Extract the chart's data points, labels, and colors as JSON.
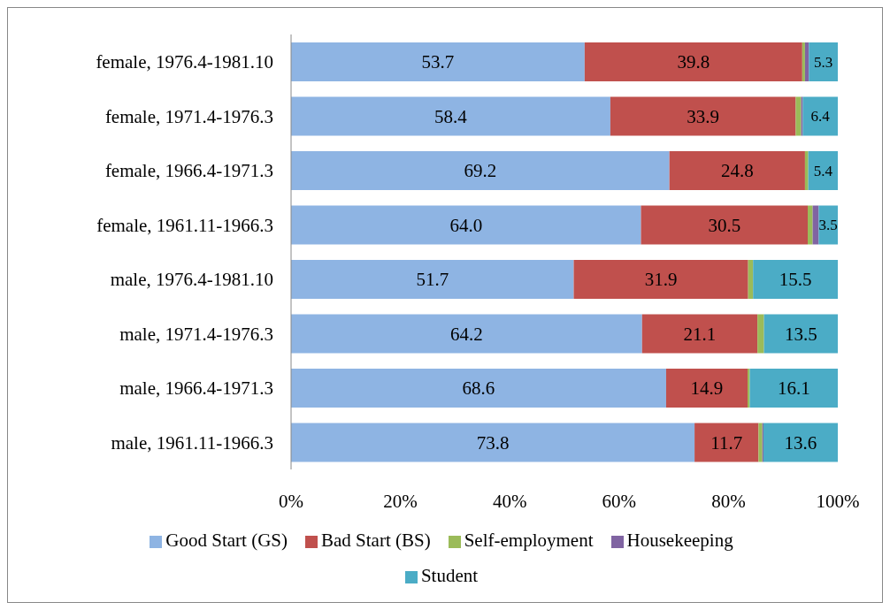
{
  "chart_data": {
    "type": "bar",
    "orientation": "horizontal",
    "stacked": true,
    "legend": "bottom",
    "categories": [
      "female, 1976.4-1981.10",
      "female, 1971.4-1976.3",
      "female, 1966.4-1971.3",
      "female, 1961.11-1966.3",
      "male, 1976.4-1981.10",
      "male, 1971.4-1976.3",
      "male, 1966.4-1971.3",
      "male, 1961.11-1966.3"
    ],
    "series": [
      {
        "name": "Good Start (GS)",
        "color": "#8eb4e3",
        "values": [
          53.7,
          58.4,
          69.2,
          64.0,
          51.7,
          64.2,
          68.6,
          73.8
        ],
        "value_labels": [
          "53.7",
          "58.4",
          "69.2",
          "64.0",
          "51.7",
          "64.2",
          "68.6",
          "73.8"
        ]
      },
      {
        "name": "Bad Start (BS)",
        "color": "#c0504d",
        "values": [
          39.8,
          33.9,
          24.8,
          30.5,
          31.9,
          21.1,
          14.9,
          11.7
        ],
        "value_labels": [
          "39.8",
          "33.9",
          "24.8",
          "30.5",
          "31.9",
          "21.1",
          "14.9",
          "11.7"
        ]
      },
      {
        "name": "Self-employment",
        "color": "#9bbb59",
        "values": [
          0.5,
          1.0,
          0.6,
          0.9,
          0.9,
          1.2,
          0.4,
          0.7
        ]
      },
      {
        "name": "Housekeeping",
        "color": "#8064a2",
        "values": [
          0.7,
          0.3,
          0,
          1.1,
          0,
          0,
          0,
          0.2
        ]
      },
      {
        "name": "Student",
        "color": "#4bacc6",
        "values": [
          5.3,
          6.4,
          5.4,
          3.5,
          15.5,
          13.5,
          16.1,
          13.6
        ],
        "value_labels": [
          "5.3",
          "6.4",
          "5.4",
          "3.5",
          "15.5",
          "13.5",
          "16.1",
          "13.6"
        ]
      }
    ],
    "xlim": [
      0,
      100
    ],
    "xticks": [
      {
        "value": 0,
        "label": "0%"
      },
      {
        "value": 20,
        "label": "20%"
      },
      {
        "value": 40,
        "label": "40%"
      },
      {
        "value": 60,
        "label": "60%"
      },
      {
        "value": 80,
        "label": "80%"
      },
      {
        "value": 100,
        "label": "100%"
      }
    ],
    "grid": false
  }
}
